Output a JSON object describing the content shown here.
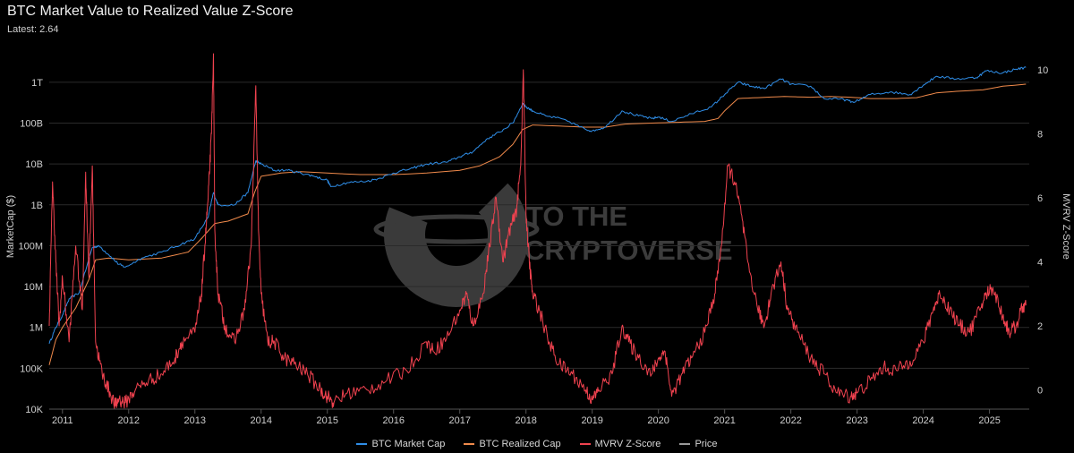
{
  "title": "BTC Market Value to Realized Value Z-Score",
  "subtitle": "Latest: 2.64",
  "watermark": {
    "line1": "TO THE",
    "line2": "CRYPTOVERSE"
  },
  "chart_data": {
    "type": "line",
    "grid": true,
    "legend_position": "bottom-center",
    "x_axis": {
      "label": "",
      "ticks": [
        "2011",
        "2012",
        "2013",
        "2014",
        "2015",
        "2016",
        "2017",
        "2018",
        "2019",
        "2020",
        "2021",
        "2022",
        "2023",
        "2024",
        "2025"
      ],
      "range": [
        2010.8,
        2025.6
      ]
    },
    "y_left": {
      "label": "MarketCap ($)",
      "scale": "log",
      "ticks": [
        "10K",
        "100K",
        "1M",
        "10M",
        "100M",
        "1B",
        "10B",
        "100B",
        "1T"
      ],
      "range": [
        10000,
        5000000000000
      ]
    },
    "y_right": {
      "label": "MVRV Z-Score",
      "ticks": [
        "0",
        "2",
        "4",
        "6",
        "8",
        "10"
      ],
      "range": [
        -0.6,
        10.5
      ]
    },
    "series": [
      {
        "name": "BTC Market Cap",
        "axis": "left",
        "color": "#2f8ee8",
        "x": [
          2010.8,
          2010.9,
          2011.0,
          2011.1,
          2011.25,
          2011.45,
          2011.55,
          2011.7,
          2011.85,
          2011.95,
          2012.2,
          2012.5,
          2012.8,
          2013.0,
          2013.2,
          2013.28,
          2013.35,
          2013.6,
          2013.8,
          2013.92,
          2014.0,
          2014.2,
          2014.4,
          2014.6,
          2014.8,
          2015.0,
          2015.05,
          2015.3,
          2015.6,
          2015.8,
          2016.0,
          2016.3,
          2016.5,
          2016.8,
          2017.0,
          2017.2,
          2017.4,
          2017.6,
          2017.8,
          2017.95,
          2018.0,
          2018.1,
          2018.3,
          2018.6,
          2018.9,
          2019.0,
          2019.2,
          2019.45,
          2019.7,
          2019.9,
          2020.0,
          2020.2,
          2020.5,
          2020.8,
          2021.0,
          2021.2,
          2021.4,
          2021.6,
          2021.85,
          2022.0,
          2022.3,
          2022.5,
          2022.8,
          2022.95,
          2023.2,
          2023.5,
          2023.8,
          2024.0,
          2024.2,
          2024.5,
          2024.8,
          2024.95,
          2025.2,
          2025.4,
          2025.55
        ],
        "y": [
          400000,
          1000000,
          2000000,
          5000000,
          7000000,
          90000000,
          100000000,
          60000000,
          35000000,
          30000000,
          50000000,
          70000000,
          110000000,
          150000000,
          500000000,
          2000000000,
          1000000000,
          1000000000,
          2000000000,
          12000000000,
          10000000000,
          7000000000,
          7000000000,
          6000000000,
          5000000000,
          4000000000,
          2800000000,
          3500000000,
          3800000000,
          4500000000,
          6000000000,
          8000000000,
          10000000000,
          11000000000,
          15000000000,
          20000000000,
          40000000000,
          60000000000,
          100000000000,
          300000000000,
          250000000000,
          200000000000,
          150000000000,
          120000000000,
          70000000000,
          65000000000,
          80000000000,
          200000000000,
          150000000000,
          130000000000,
          140000000000,
          110000000000,
          170000000000,
          250000000000,
          500000000000,
          1000000000000,
          800000000000,
          700000000000,
          1200000000000,
          900000000000,
          800000000000,
          400000000000,
          380000000000,
          320000000000,
          500000000000,
          580000000000,
          500000000000,
          850000000000,
          1400000000000,
          1200000000000,
          1300000000000,
          1900000000000,
          1700000000000,
          2100000000000,
          2300000000000
        ]
      },
      {
        "name": "BTC Realized Cap",
        "axis": "left",
        "color": "#f08a4b",
        "x": [
          2010.8,
          2010.9,
          2011.0,
          2011.2,
          2011.4,
          2011.5,
          2011.7,
          2012.0,
          2012.5,
          2012.9,
          2013.1,
          2013.3,
          2013.5,
          2013.8,
          2013.9,
          2014.0,
          2014.3,
          2014.6,
          2015.0,
          2015.5,
          2016.0,
          2016.5,
          2017.0,
          2017.3,
          2017.6,
          2017.8,
          2017.95,
          2018.1,
          2018.5,
          2018.9,
          2019.2,
          2019.5,
          2019.9,
          2020.3,
          2020.7,
          2020.9,
          2021.0,
          2021.2,
          2021.5,
          2021.9,
          2022.3,
          2022.6,
          2022.9,
          2023.2,
          2023.6,
          2023.9,
          2024.2,
          2024.5,
          2024.9,
          2025.2,
          2025.55
        ],
        "y": [
          120000,
          500000,
          1000000,
          3000000,
          15000000,
          45000000,
          50000000,
          45000000,
          50000000,
          70000000,
          150000000,
          350000000,
          400000000,
          600000000,
          2000000000,
          5000000000,
          6000000000,
          6500000000,
          6000000000,
          5500000000,
          5500000000,
          6000000000,
          7000000000,
          9000000000,
          15000000000,
          30000000000,
          70000000000,
          90000000000,
          85000000000,
          80000000000,
          80000000000,
          95000000000,
          100000000000,
          105000000000,
          110000000000,
          130000000000,
          200000000000,
          400000000000,
          420000000000,
          450000000000,
          430000000000,
          450000000000,
          430000000000,
          400000000000,
          400000000000,
          420000000000,
          550000000000,
          600000000000,
          650000000000,
          800000000000,
          900000000000
        ]
      },
      {
        "name": "MVRV Z-Score",
        "axis": "right",
        "color": "#f0424f",
        "x": [
          2010.8,
          2010.85,
          2010.9,
          2010.95,
          2011.0,
          2011.1,
          2011.2,
          2011.3,
          2011.35,
          2011.4,
          2011.45,
          2011.5,
          2011.6,
          2011.7,
          2011.8,
          2011.85,
          2011.95,
          2012.1,
          2012.3,
          2012.5,
          2012.7,
          2012.8,
          2013.0,
          2013.1,
          2013.15,
          2013.2,
          2013.25,
          2013.28,
          2013.3,
          2013.35,
          2013.45,
          2013.6,
          2013.75,
          2013.85,
          2013.92,
          2013.96,
          2014.0,
          2014.1,
          2014.2,
          2014.35,
          2014.5,
          2014.7,
          2014.9,
          2015.0,
          2015.1,
          2015.3,
          2015.6,
          2015.9,
          2016.2,
          2016.5,
          2016.6,
          2016.8,
          2017.0,
          2017.1,
          2017.2,
          2017.35,
          2017.45,
          2017.55,
          2017.65,
          2017.75,
          2017.85,
          2017.92,
          2017.96,
          2018.0,
          2018.05,
          2018.1,
          2018.2,
          2018.35,
          2018.5,
          2018.7,
          2018.9,
          2019.0,
          2019.1,
          2019.3,
          2019.45,
          2019.55,
          2019.7,
          2019.9,
          2020.0,
          2020.1,
          2020.2,
          2020.35,
          2020.5,
          2020.7,
          2020.85,
          2020.95,
          2021.05,
          2021.15,
          2021.25,
          2021.35,
          2021.5,
          2021.6,
          2021.7,
          2021.85,
          2021.95,
          2022.1,
          2022.3,
          2022.5,
          2022.7,
          2022.9,
          2023.0,
          2023.2,
          2023.4,
          2023.6,
          2023.8,
          2024.0,
          2024.15,
          2024.25,
          2024.4,
          2024.55,
          2024.7,
          2024.85,
          2024.95,
          2025.05,
          2025.2,
          2025.3,
          2025.4,
          2025.5,
          2025.55
        ],
        "y": [
          2,
          6.5,
          4,
          2,
          3.5,
          1.5,
          4.5,
          2.5,
          6.8,
          3.5,
          7,
          1.5,
          0.5,
          0,
          -0.5,
          -0.3,
          -0.4,
          0,
          0.3,
          0.5,
          1,
          1.5,
          1.8,
          3,
          4.5,
          6,
          8,
          10.5,
          5,
          3,
          2,
          1.5,
          2.5,
          4.5,
          9.5,
          5,
          3,
          1.5,
          1.5,
          1,
          0.8,
          0.5,
          0,
          -0.2,
          -0.4,
          -0.1,
          0,
          0.3,
          0.6,
          1.5,
          1.2,
          1.6,
          2.5,
          3,
          2,
          3,
          4.5,
          6,
          4,
          5,
          5.5,
          7,
          10,
          5.5,
          4,
          3,
          2.5,
          1.5,
          0.8,
          0.5,
          0,
          -0.3,
          0,
          0.5,
          2,
          1.5,
          1,
          0.5,
          1,
          1.2,
          -0.2,
          0.5,
          1,
          1.8,
          3,
          4.5,
          7,
          6.5,
          5.5,
          4,
          2.5,
          2,
          3,
          4,
          2.5,
          1.8,
          1,
          0.5,
          -0.1,
          -0.2,
          -0.1,
          0.3,
          0.7,
          0.6,
          0.9,
          1.5,
          2.5,
          3,
          2.5,
          2,
          1.8,
          2.5,
          3,
          3.2,
          2.3,
          1.8,
          2,
          2.6,
          2.64
        ]
      },
      {
        "name": "Price",
        "axis": "left",
        "color": "#9a9a9a",
        "x": [],
        "y": []
      }
    ]
  }
}
